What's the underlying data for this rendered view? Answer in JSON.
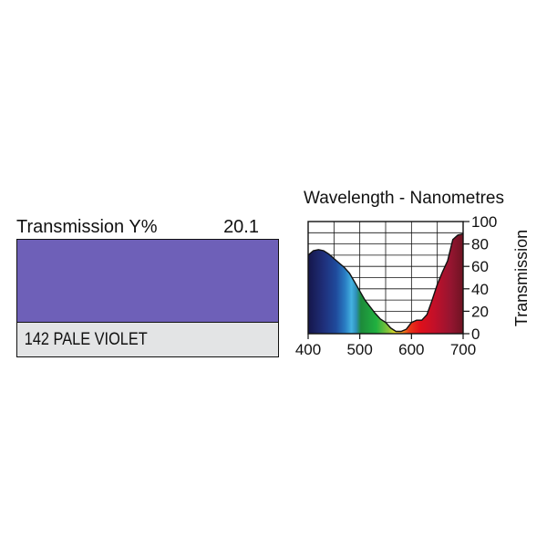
{
  "filter": {
    "transmission_label": "Transmission Y%",
    "transmission_value": "20.1",
    "name": "142 PALE VIOLET",
    "swatch_color": "#6e60b8"
  },
  "chart_data": {
    "type": "area",
    "title": "Wavelength - Nanometres",
    "xlabel": "",
    "ylabel": "Transmission",
    "xlim": [
      400,
      700
    ],
    "ylim": [
      0,
      100
    ],
    "x_ticks": [
      400,
      500,
      600,
      700
    ],
    "y_ticks": [
      0,
      20,
      40,
      60,
      80,
      100
    ],
    "grid": true,
    "fill": "visible-spectrum gradient",
    "series": [
      {
        "x": [
          400,
          410,
          420,
          430,
          440,
          450,
          460,
          470,
          480,
          490,
          500,
          510,
          520,
          530,
          540,
          550,
          560,
          570,
          580,
          590,
          600,
          610,
          620,
          630,
          640,
          650,
          660,
          670,
          680,
          690,
          700
        ],
        "y": [
          70,
          74,
          75,
          74,
          71,
          67,
          63,
          59,
          54,
          46,
          38,
          30,
          24,
          18,
          13,
          10,
          5,
          2,
          2,
          4,
          10,
          12,
          12,
          17,
          30,
          44,
          55,
          65,
          84,
          88,
          89
        ]
      }
    ]
  }
}
